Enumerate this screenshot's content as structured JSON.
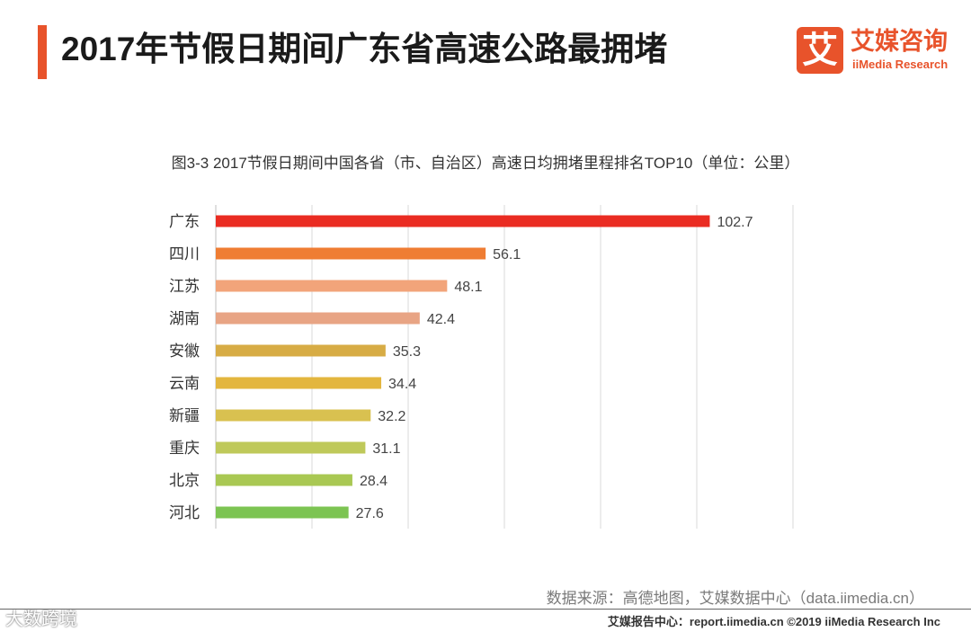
{
  "header": {
    "title": "2017年节假日期间广东省高速公路最拥堵",
    "accent_color": "#e8532b"
  },
  "logo": {
    "mark": "艾",
    "name_cn": "艾媒咨询",
    "name_en": "iiMedia Research"
  },
  "chart_data": {
    "type": "bar",
    "orientation": "horizontal",
    "title": "图3-3 2017节假日期间中国各省（市、自治区）高速日均拥堵里程排名TOP10（单位：公里）",
    "categories": [
      "广东",
      "四川",
      "江苏",
      "湖南",
      "安徽",
      "云南",
      "新疆",
      "重庆",
      "北京",
      "河北"
    ],
    "values": [
      102.7,
      56.1,
      48.1,
      42.4,
      35.3,
      34.4,
      32.2,
      31.1,
      28.4,
      27.6
    ],
    "value_labels": [
      "102.7",
      "56.1",
      "48.1",
      "42.4",
      "35.3",
      "34.4",
      "32.2",
      "31.1",
      "28.4",
      "27.6"
    ],
    "colors": [
      "#ea2c22",
      "#ef7d33",
      "#f2a47a",
      "#e8a484",
      "#d7ac45",
      "#e3b63e",
      "#d9c150",
      "#bfc95a",
      "#a9c853",
      "#7cc452"
    ],
    "xlim": [
      0,
      120
    ],
    "grid_step": 20,
    "grid": true,
    "xlabel": "",
    "ylabel": ""
  },
  "source": "数据来源：高德地图，艾媒数据中心（data.iimedia.cn）",
  "footer": "艾媒报告中心：report.iimedia.cn  ©2019  iiMedia Research  Inc",
  "watermark": "大数跨境"
}
